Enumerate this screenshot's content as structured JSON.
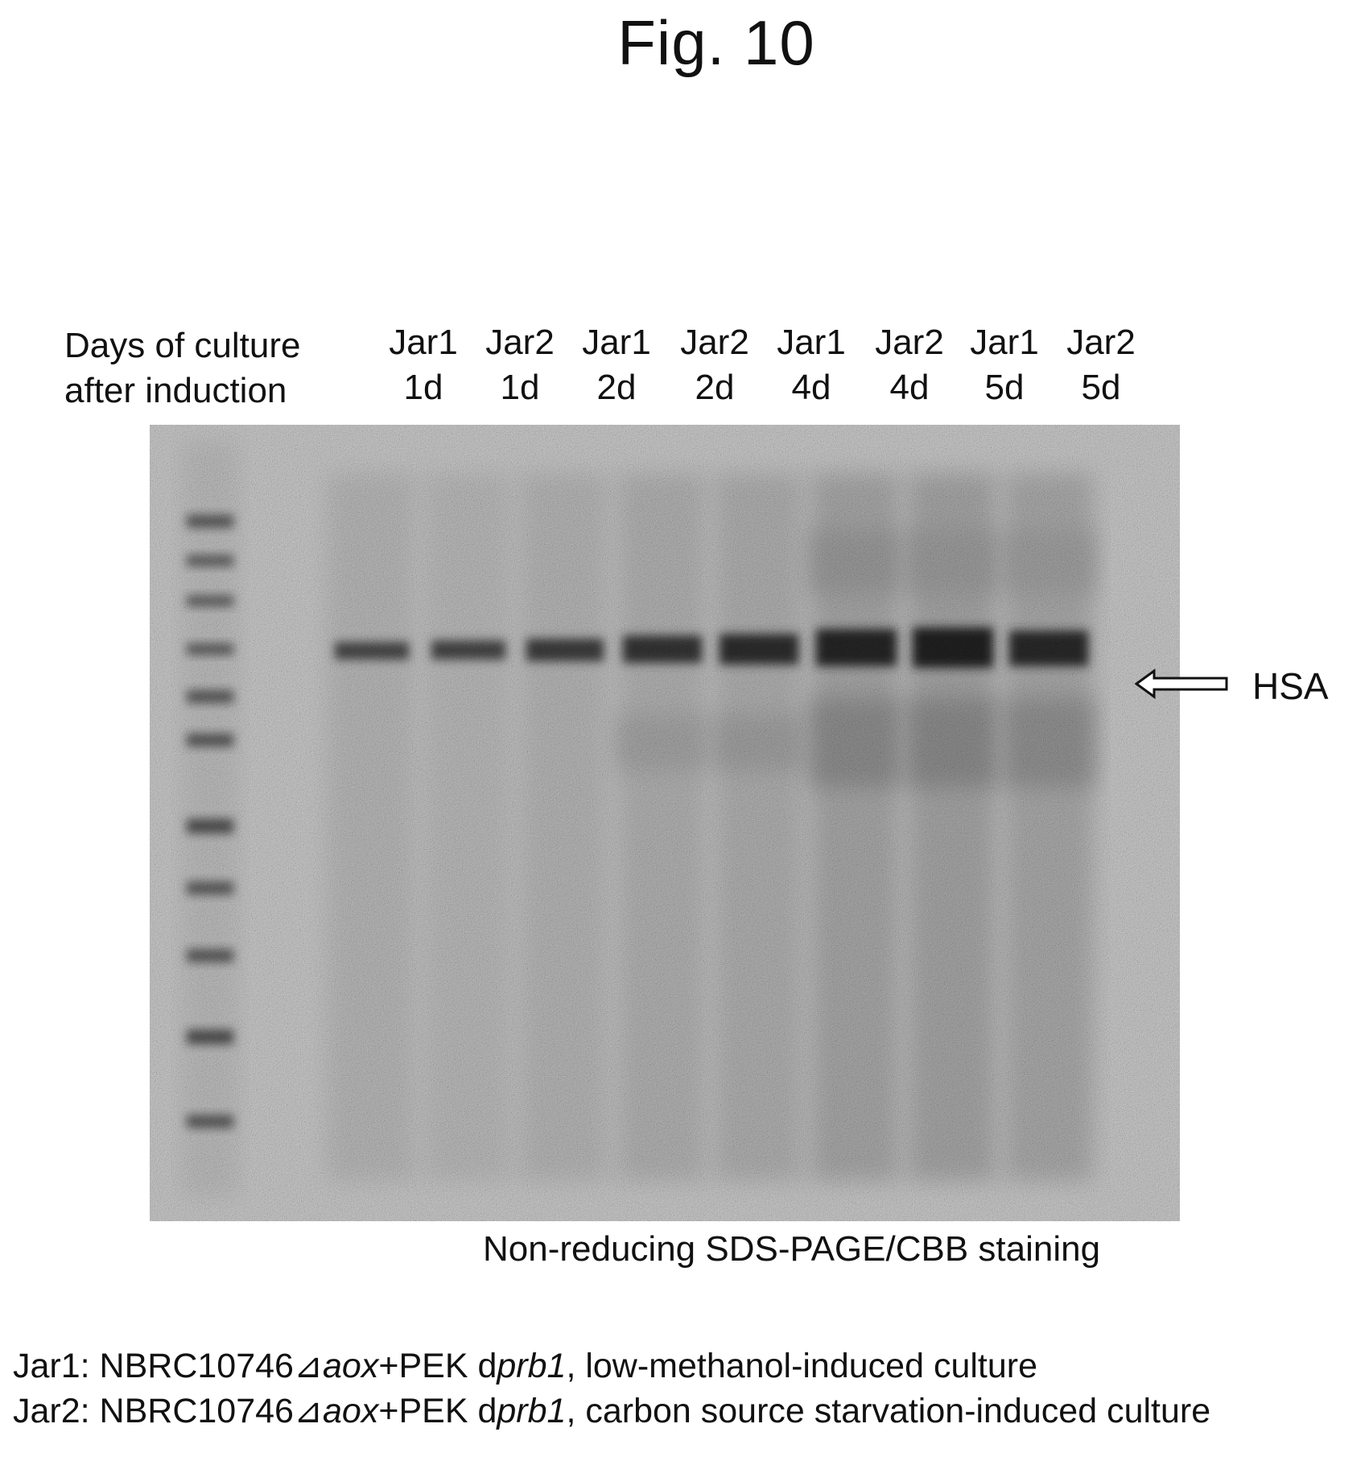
{
  "figure": {
    "title": "Fig. 10"
  },
  "header": {
    "days_label_line1": "Days of culture",
    "days_label_line2": "after induction"
  },
  "lanes": [
    {
      "jar": "Jar1",
      "day": "1d"
    },
    {
      "jar": "Jar2",
      "day": "1d"
    },
    {
      "jar": "Jar1",
      "day": "2d"
    },
    {
      "jar": "Jar2",
      "day": "2d"
    },
    {
      "jar": "Jar1",
      "day": "4d"
    },
    {
      "jar": "Jar2",
      "day": "4d"
    },
    {
      "jar": "Jar1",
      "day": "5d"
    },
    {
      "jar": "Jar2",
      "day": "5d"
    }
  ],
  "band": {
    "label": "HSA"
  },
  "caption": {
    "method": "Non-reducing SDS-PAGE/CBB staining"
  },
  "legend": {
    "jar1": {
      "prefix": "Jar1: NBRC10746",
      "delta": "⊿",
      "aox": "aox",
      "plus": "+PEK d",
      "prb": "prb1",
      "suffix": ", low-methanol-induced culture"
    },
    "jar2": {
      "prefix": "Jar2: NBRC10746",
      "delta": "⊿",
      "aox": "aox",
      "plus": "+PEK d",
      "prb": "prb1",
      "suffix": ", carbon source starvation-induced culture"
    }
  }
}
